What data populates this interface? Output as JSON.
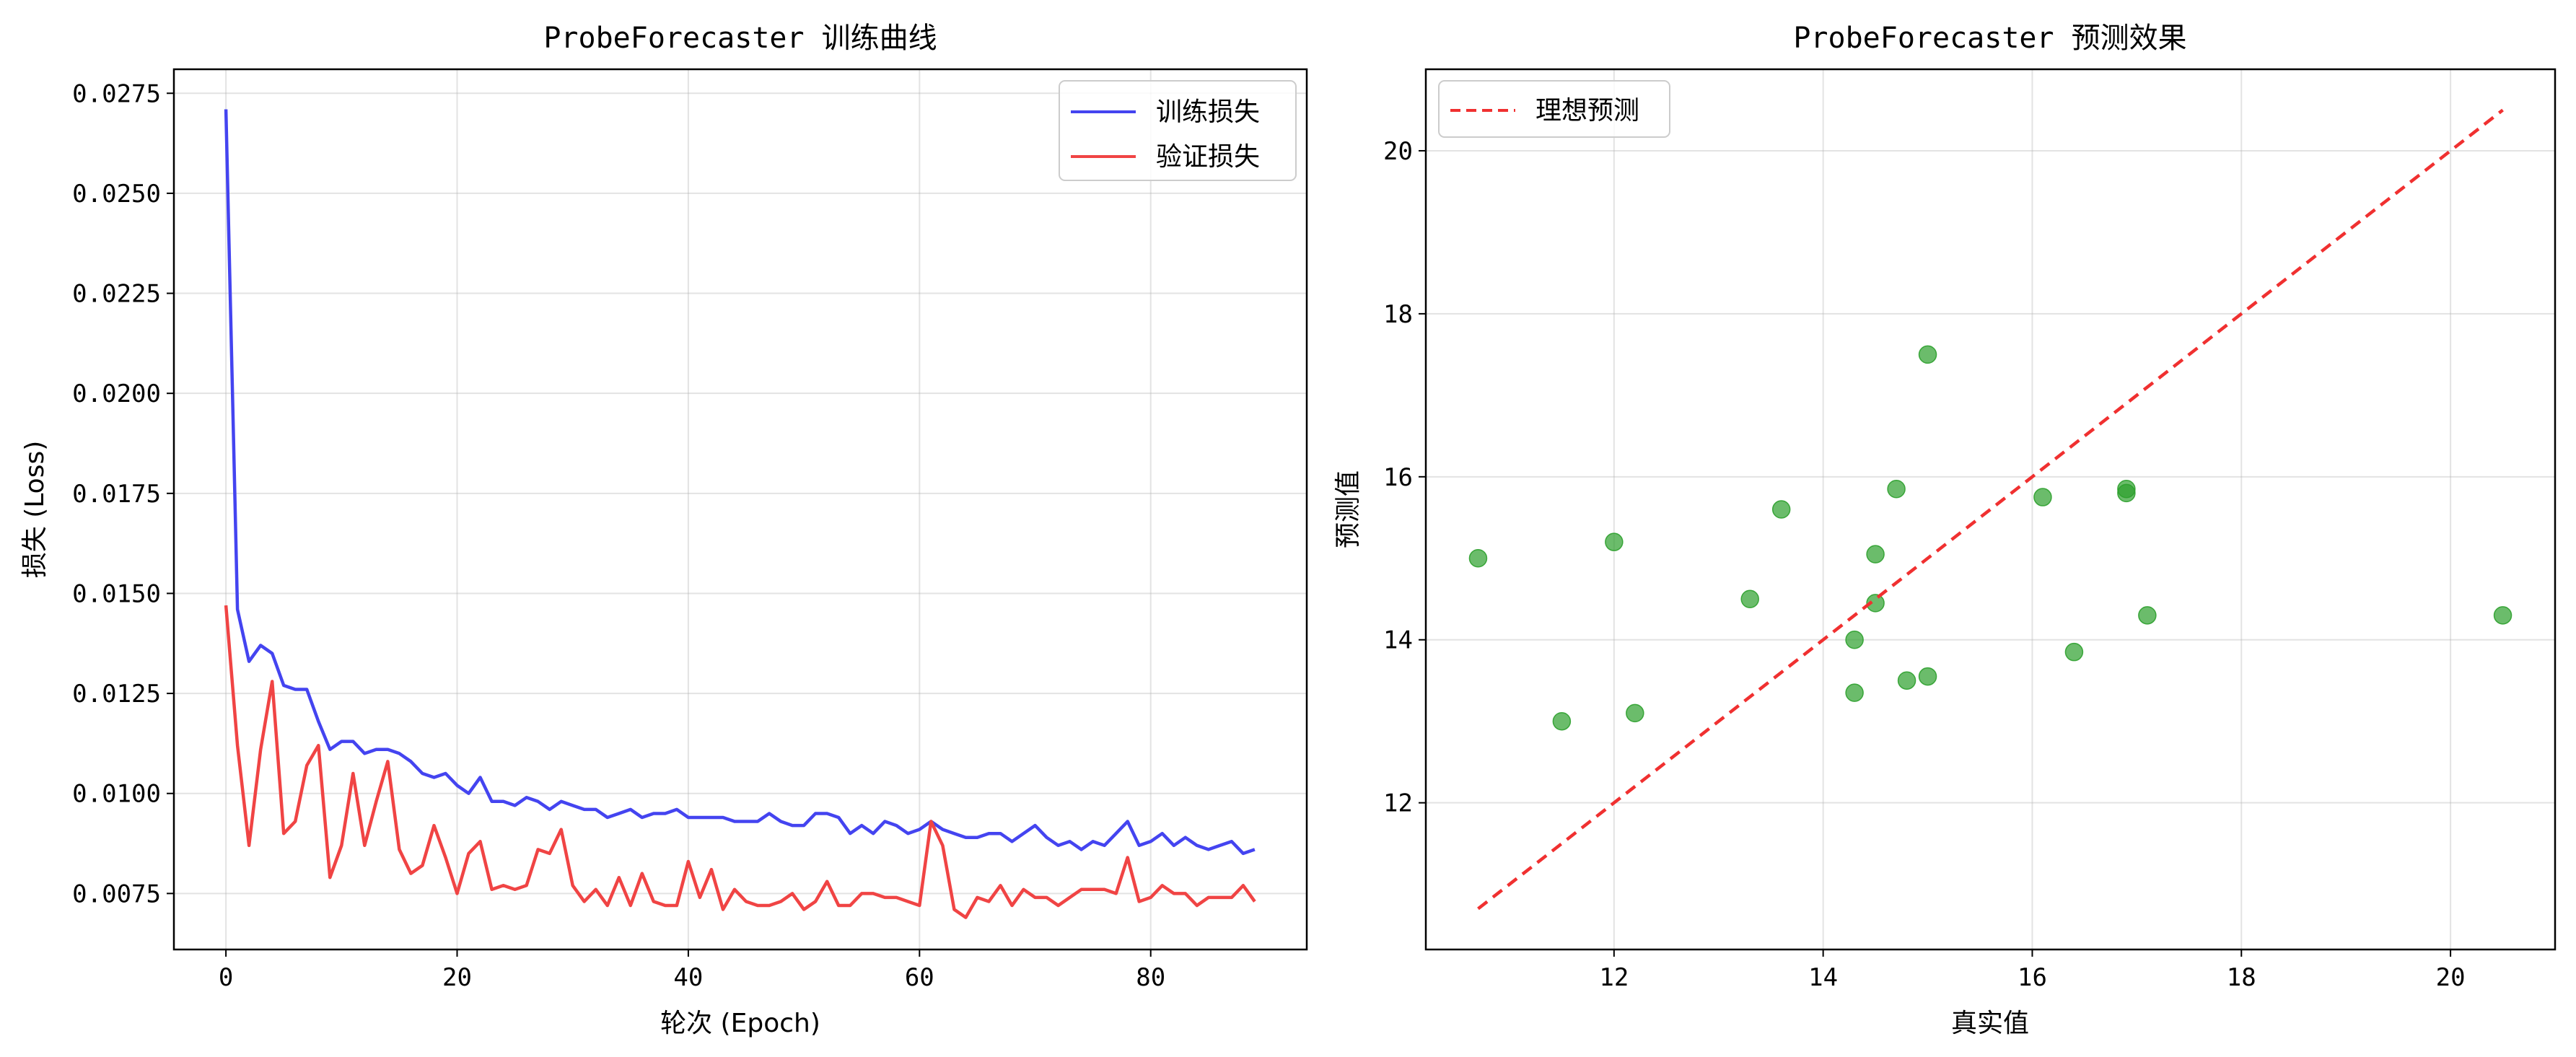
{
  "chart_data": [
    {
      "type": "line",
      "title": "ProbeForecaster 训练曲线",
      "xlabel": "轮次 (Epoch)",
      "ylabel": "损失 (Loss)",
      "xlim": [
        -4.5,
        93.5
      ],
      "ylim": [
        0.0061,
        0.0281
      ],
      "xticks": [
        0,
        20,
        40,
        60,
        80
      ],
      "yticks": [
        0.0075,
        0.01,
        0.0125,
        0.015,
        0.0175,
        0.02,
        0.0225,
        0.025,
        0.0275
      ],
      "xtick_labels": [
        "0",
        "20",
        "40",
        "60",
        "80"
      ],
      "ytick_labels": [
        "0.0075",
        "0.0100",
        "0.0125",
        "0.0150",
        "0.0175",
        "0.0200",
        "0.0225",
        "0.0250",
        "0.0275"
      ],
      "grid": true,
      "legend_position": "top-right",
      "series": [
        {
          "name": "训练损失",
          "color": "#4444f0",
          "values": [
            0.0271,
            0.0146,
            0.0133,
            0.0137,
            0.0135,
            0.0127,
            0.0126,
            0.0126,
            0.0118,
            0.0111,
            0.0113,
            0.0113,
            0.011,
            0.0111,
            0.0111,
            0.011,
            0.0108,
            0.0105,
            0.0104,
            0.0105,
            0.0102,
            0.01,
            0.0104,
            0.0098,
            0.0098,
            0.0097,
            0.0099,
            0.0098,
            0.0096,
            0.0098,
            0.0097,
            0.0096,
            0.0096,
            0.0094,
            0.0095,
            0.0096,
            0.0094,
            0.0095,
            0.0095,
            0.0096,
            0.0094,
            0.0094,
            0.0094,
            0.0094,
            0.0093,
            0.0093,
            0.0093,
            0.0095,
            0.0093,
            0.0092,
            0.0092,
            0.0095,
            0.0095,
            0.0094,
            0.009,
            0.0092,
            0.009,
            0.0093,
            0.0092,
            0.009,
            0.0091,
            0.0093,
            0.0091,
            0.009,
            0.0089,
            0.0089,
            0.009,
            0.009,
            0.0088,
            0.009,
            0.0092,
            0.0089,
            0.0087,
            0.0088,
            0.0086,
            0.0088,
            0.0087,
            0.009,
            0.0093,
            0.0087,
            0.0088,
            0.009,
            0.0087,
            0.0089,
            0.0087,
            0.0086,
            0.0087,
            0.0088,
            0.0085,
            0.0086
          ]
        },
        {
          "name": "验证损失",
          "color": "#f04444",
          "values": [
            0.0147,
            0.0112,
            0.0087,
            0.0111,
            0.0128,
            0.009,
            0.0093,
            0.0107,
            0.0112,
            0.0079,
            0.0087,
            0.0105,
            0.0087,
            0.0098,
            0.0108,
            0.0086,
            0.008,
            0.0082,
            0.0092,
            0.0084,
            0.0075,
            0.0085,
            0.0088,
            0.0076,
            0.0077,
            0.0076,
            0.0077,
            0.0086,
            0.0085,
            0.0091,
            0.0077,
            0.0073,
            0.0076,
            0.0072,
            0.0079,
            0.0072,
            0.008,
            0.0073,
            0.0072,
            0.0072,
            0.0083,
            0.0074,
            0.0081,
            0.0071,
            0.0076,
            0.0073,
            0.0072,
            0.0072,
            0.0073,
            0.0075,
            0.0071,
            0.0073,
            0.0078,
            0.0072,
            0.0072,
            0.0075,
            0.0075,
            0.0074,
            0.0074,
            0.0073,
            0.0072,
            0.0093,
            0.0087,
            0.0071,
            0.0069,
            0.0074,
            0.0073,
            0.0077,
            0.0072,
            0.0076,
            0.0074,
            0.0074,
            0.0072,
            0.0074,
            0.0076,
            0.0076,
            0.0076,
            0.0075,
            0.0084,
            0.0073,
            0.0074,
            0.0077,
            0.0075,
            0.0075,
            0.0072,
            0.0074,
            0.0074,
            0.0074,
            0.0077,
            0.0073
          ]
        }
      ]
    },
    {
      "type": "scatter",
      "title": "ProbeForecaster 预测效果",
      "xlabel": "真实值",
      "ylabel": "预测值",
      "xlim": [
        10.2,
        21.0
      ],
      "ylim": [
        10.2,
        21.0
      ],
      "xticks": [
        12,
        14,
        16,
        18,
        20
      ],
      "yticks": [
        12,
        14,
        16,
        18,
        20
      ],
      "xtick_labels": [
        "12",
        "14",
        "16",
        "18",
        "20"
      ],
      "ytick_labels": [
        "12",
        "14",
        "16",
        "18",
        "20"
      ],
      "grid": true,
      "legend_position": "top-left",
      "point_color": "#2ca02c",
      "points": [
        {
          "x": 10.7,
          "y": 15.0
        },
        {
          "x": 11.5,
          "y": 13.0
        },
        {
          "x": 12.0,
          "y": 15.2
        },
        {
          "x": 12.2,
          "y": 13.1
        },
        {
          "x": 13.3,
          "y": 14.5
        },
        {
          "x": 13.6,
          "y": 15.6
        },
        {
          "x": 14.3,
          "y": 14.0
        },
        {
          "x": 14.3,
          "y": 13.35
        },
        {
          "x": 14.5,
          "y": 15.05
        },
        {
          "x": 14.5,
          "y": 14.45
        },
        {
          "x": 14.7,
          "y": 15.85
        },
        {
          "x": 14.8,
          "y": 13.5
        },
        {
          "x": 15.0,
          "y": 17.5
        },
        {
          "x": 15.0,
          "y": 13.55
        },
        {
          "x": 16.1,
          "y": 15.75
        },
        {
          "x": 16.4,
          "y": 13.85
        },
        {
          "x": 16.9,
          "y": 15.8
        },
        {
          "x": 16.9,
          "y": 15.85
        },
        {
          "x": 17.1,
          "y": 14.3
        },
        {
          "x": 20.5,
          "y": 14.3
        }
      ],
      "reference_line": {
        "name": "理想预测",
        "color": "#f03030",
        "x": [
          10.7,
          20.5
        ],
        "y": [
          10.7,
          20.5
        ]
      }
    }
  ]
}
